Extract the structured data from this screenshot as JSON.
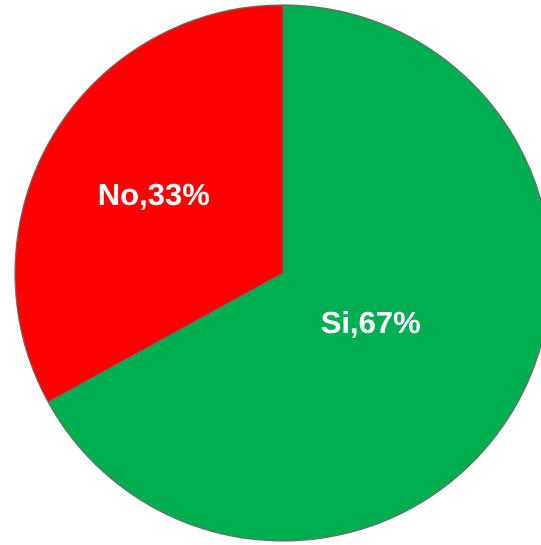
{
  "chart_data": {
    "type": "pie",
    "slices": [
      {
        "category": "Si",
        "value": 67,
        "label": "Si,67%",
        "color": "#00b050"
      },
      {
        "category": "No",
        "value": 33,
        "label": "No,33%",
        "color": "#ff0000"
      }
    ],
    "start_angle_deg": 0,
    "direction": "clockwise",
    "legend": "none"
  }
}
